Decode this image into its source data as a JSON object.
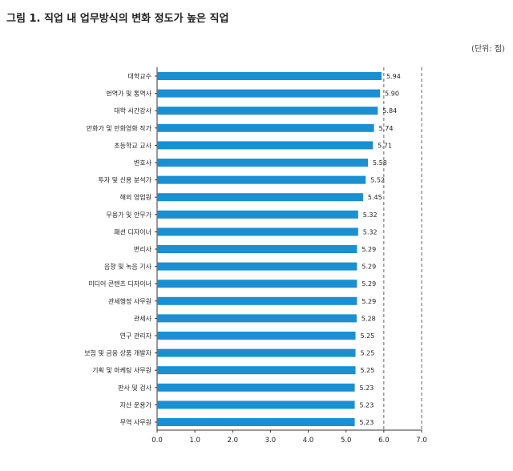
{
  "figure": {
    "title": "그림 1. 직업 내 업무방식의 변화 정도가 높은 직업",
    "unit_note": "(단위: 점)"
  },
  "colors": {
    "bar": "#1a8fd1"
  },
  "chart_data": {
    "type": "bar",
    "orientation": "horizontal",
    "categories": [
      "대학교수",
      "번역가 및 통역사",
      "대학 시간강사",
      "만화가 및 만화영화 작가",
      "초등학교 교사",
      "변호사",
      "투자 및 신용 분석가",
      "해외 영업원",
      "무용가 및 안무가",
      "패션 디자이너",
      "변리사",
      "음향 및 녹음 기사",
      "미디어 콘텐츠 디자이너",
      "관세행정 사무원",
      "관세사",
      "연구 관리자",
      "보험 및 금융 상품 개발자",
      "기획 및 마케팅 사무원",
      "판사 및 검사",
      "자산 운용가",
      "무역 사무원"
    ],
    "values": [
      5.94,
      5.9,
      5.84,
      5.74,
      5.71,
      5.58,
      5.52,
      5.45,
      5.32,
      5.32,
      5.29,
      5.29,
      5.29,
      5.29,
      5.28,
      5.25,
      5.25,
      5.25,
      5.23,
      5.23,
      5.23
    ],
    "value_labels": [
      "5.94",
      "5.90",
      "5.84",
      "5.74",
      "5.71",
      "5.58",
      "5.52",
      "5.45",
      "5.32",
      "5.32",
      "5.29",
      "5.29",
      "5.29",
      "5.29",
      "5.28",
      "5.25",
      "5.25",
      "5.25",
      "5.23",
      "5.23",
      "5.23"
    ],
    "xlim": [
      0,
      7
    ],
    "xticks": [
      "0.0",
      "1.0",
      "2.0",
      "3.0",
      "4.0",
      "5.0",
      "6.0",
      "7.0"
    ],
    "grid": "dashed vertical lines at 6.0 and 7.0",
    "legend": "none"
  }
}
